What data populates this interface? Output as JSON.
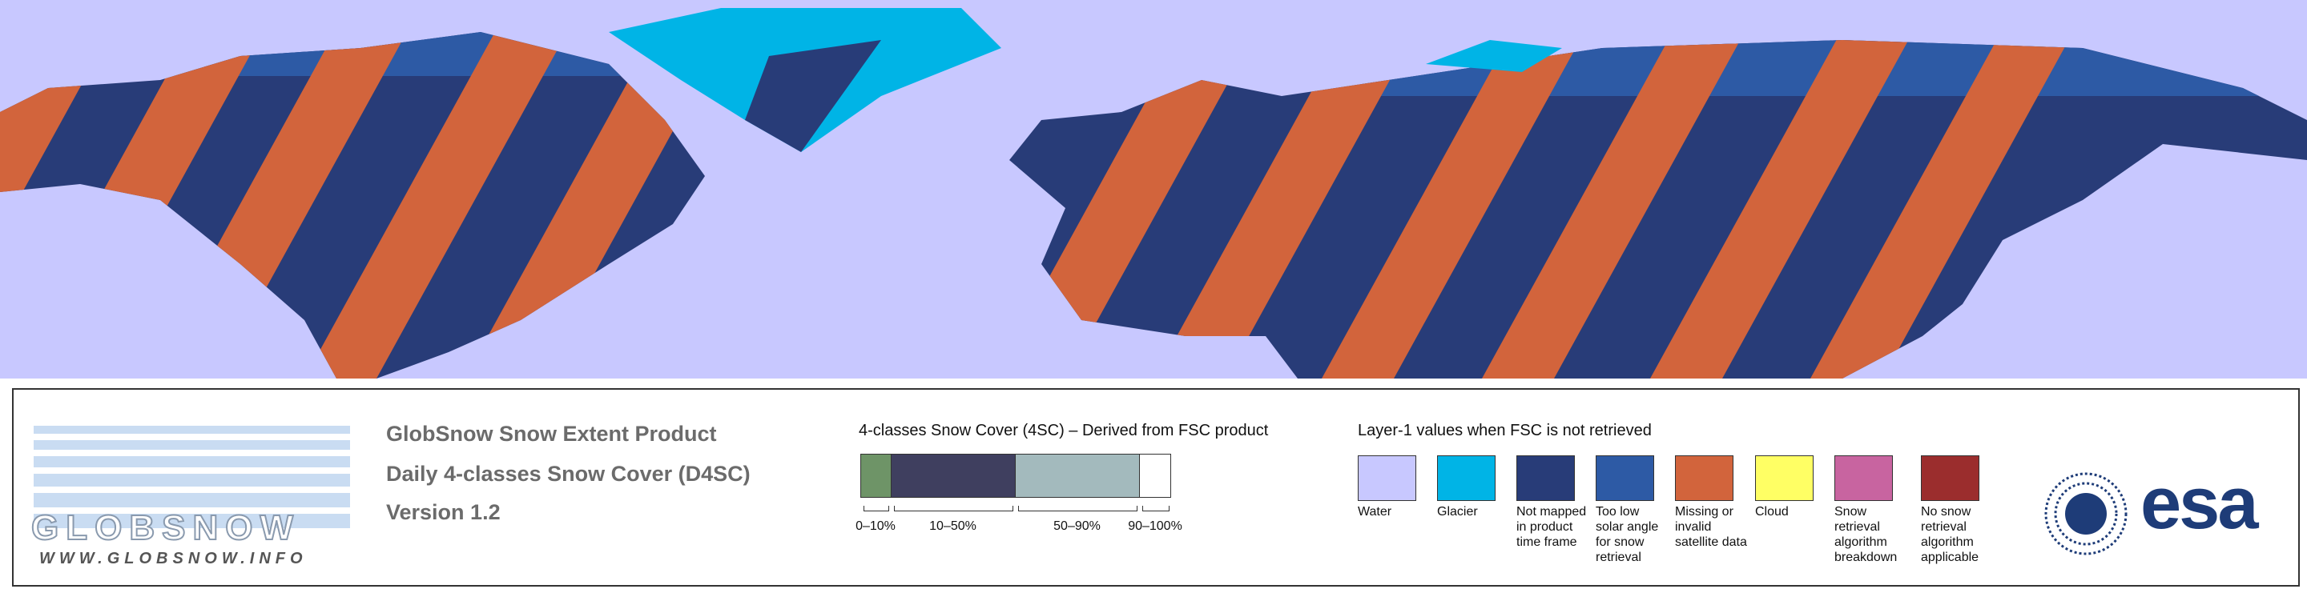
{
  "header": {
    "logo": "GLOBSNOW",
    "url": "WWW.GLOBSNOW.INFO",
    "title": [
      "GlobSnow Snow Extent Product",
      "Daily 4-classes Snow Cover (D4SC)",
      "Version 1.2"
    ]
  },
  "snow_cover_legend": {
    "title": "4-classes Snow Cover (4SC) – Derived from FSC product",
    "classes": [
      {
        "label": "0–10%",
        "color": "#6e9467"
      },
      {
        "label": "10–50%",
        "color": "#3f3f5f"
      },
      {
        "label": "50–90%",
        "color": "#a3babd"
      },
      {
        "label": "90–100%",
        "color": "#ffffff"
      }
    ]
  },
  "layer1_legend": {
    "title": "Layer-1 values when FSC is not retrieved",
    "items": [
      {
        "label": "Water",
        "color": "#c8c8ff"
      },
      {
        "label": "Glacier",
        "color": "#00b4e6"
      },
      {
        "label": "Not mapped in product time frame",
        "color": "#283c78"
      },
      {
        "label": "Too low solar angle for snow retrieval",
        "color": "#2d5aa5"
      },
      {
        "label": "Missing or invalid satellite data",
        "color": "#d2643c"
      },
      {
        "label": "Cloud",
        "color": "#ffff64"
      },
      {
        "label": "Snow retrieval algorithm breakdown",
        "color": "#c864a0"
      },
      {
        "label": "No snow retrieval algorithm applicable",
        "color": "#9b2d2d"
      }
    ]
  },
  "agency": "esa"
}
